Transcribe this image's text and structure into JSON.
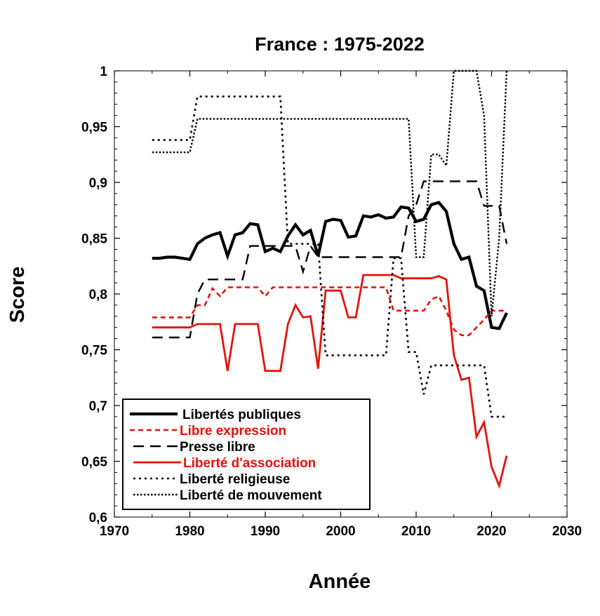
{
  "chart_data": {
    "type": "line",
    "title": "France : 1975-2022",
    "xlabel": "Année",
    "ylabel": "Score",
    "xlim": [
      1970,
      2030
    ],
    "ylim": [
      0.6,
      1.0
    ],
    "x_ticks": [
      1970,
      1980,
      1990,
      2000,
      2010,
      2020,
      2030
    ],
    "x_tick_labels": [
      "1970",
      "1980",
      "1990",
      "2000",
      "2010",
      "2020",
      "2030"
    ],
    "y_ticks": [
      0.6,
      0.65,
      0.7,
      0.75,
      0.8,
      0.85,
      0.9,
      0.95,
      1.0
    ],
    "y_tick_labels": [
      "0,6",
      "0,65",
      "0,7",
      "0,75",
      "0,8",
      "0,85",
      "0,9",
      "0,95",
      "1"
    ],
    "grid": false,
    "legend_position": "bottom-left",
    "series": [
      {
        "name": "Libertés publiques",
        "color": "#000000",
        "style": "solid-thick",
        "points": [
          [
            1975,
            0.832
          ],
          [
            1976,
            0.832
          ],
          [
            1977,
            0.833
          ],
          [
            1978,
            0.833
          ],
          [
            1979,
            0.832
          ],
          [
            1980,
            0.831
          ],
          [
            1981,
            0.845
          ],
          [
            1982,
            0.85
          ],
          [
            1983,
            0.853
          ],
          [
            1984,
            0.855
          ],
          [
            1985,
            0.834
          ],
          [
            1986,
            0.853
          ],
          [
            1987,
            0.855
          ],
          [
            1988,
            0.863
          ],
          [
            1989,
            0.862
          ],
          [
            1990,
            0.838
          ],
          [
            1991,
            0.841
          ],
          [
            1992,
            0.838
          ],
          [
            1993,
            0.852
          ],
          [
            1994,
            0.862
          ],
          [
            1995,
            0.853
          ],
          [
            1996,
            0.857
          ],
          [
            1997,
            0.834
          ],
          [
            1998,
            0.865
          ],
          [
            1999,
            0.867
          ],
          [
            2000,
            0.866
          ],
          [
            2001,
            0.851
          ],
          [
            2002,
            0.852
          ],
          [
            2003,
            0.87
          ],
          [
            2004,
            0.869
          ],
          [
            2005,
            0.871
          ],
          [
            2006,
            0.868
          ],
          [
            2007,
            0.869
          ],
          [
            2008,
            0.878
          ],
          [
            2009,
            0.877
          ],
          [
            2010,
            0.865
          ],
          [
            2011,
            0.867
          ],
          [
            2012,
            0.88
          ],
          [
            2013,
            0.882
          ],
          [
            2014,
            0.874
          ],
          [
            2015,
            0.845
          ],
          [
            2016,
            0.831
          ],
          [
            2017,
            0.833
          ],
          [
            2018,
            0.807
          ],
          [
            2019,
            0.803
          ],
          [
            2020,
            0.77
          ],
          [
            2021,
            0.769
          ],
          [
            2022,
            0.783
          ]
        ]
      },
      {
        "name": "Libre expression",
        "color": "#e3120b",
        "style": "dashed",
        "points": [
          [
            1975,
            0.779
          ],
          [
            1976,
            0.779
          ],
          [
            1977,
            0.779
          ],
          [
            1978,
            0.779
          ],
          [
            1979,
            0.779
          ],
          [
            1980,
            0.779
          ],
          [
            1981,
            0.79
          ],
          [
            1982,
            0.79
          ],
          [
            1983,
            0.805
          ],
          [
            1984,
            0.798
          ],
          [
            1985,
            0.806
          ],
          [
            1986,
            0.806
          ],
          [
            1987,
            0.806
          ],
          [
            1988,
            0.806
          ],
          [
            1989,
            0.806
          ],
          [
            1990,
            0.798
          ],
          [
            1991,
            0.806
          ],
          [
            1992,
            0.806
          ],
          [
            1993,
            0.806
          ],
          [
            1994,
            0.806
          ],
          [
            1995,
            0.806
          ],
          [
            1996,
            0.806
          ],
          [
            1997,
            0.806
          ],
          [
            1998,
            0.806
          ],
          [
            1999,
            0.806
          ],
          [
            2000,
            0.806
          ],
          [
            2001,
            0.806
          ],
          [
            2002,
            0.806
          ],
          [
            2003,
            0.806
          ],
          [
            2004,
            0.806
          ],
          [
            2005,
            0.806
          ],
          [
            2006,
            0.806
          ],
          [
            2007,
            0.785
          ],
          [
            2008,
            0.785
          ],
          [
            2009,
            0.785
          ],
          [
            2010,
            0.785
          ],
          [
            2011,
            0.785
          ],
          [
            2012,
            0.795
          ],
          [
            2013,
            0.798
          ],
          [
            2014,
            0.785
          ],
          [
            2015,
            0.768
          ],
          [
            2016,
            0.763
          ],
          [
            2017,
            0.763
          ],
          [
            2018,
            0.77
          ],
          [
            2019,
            0.777
          ],
          [
            2020,
            0.785
          ],
          [
            2021,
            0.785
          ],
          [
            2022,
            0.785
          ]
        ]
      },
      {
        "name": "Presse libre",
        "color": "#000000",
        "style": "long-dash",
        "points": [
          [
            1975,
            0.761
          ],
          [
            1976,
            0.761
          ],
          [
            1977,
            0.761
          ],
          [
            1978,
            0.761
          ],
          [
            1979,
            0.761
          ],
          [
            1980,
            0.761
          ],
          [
            1981,
            0.8
          ],
          [
            1982,
            0.813
          ],
          [
            1983,
            0.813
          ],
          [
            1984,
            0.813
          ],
          [
            1985,
            0.813
          ],
          [
            1986,
            0.813
          ],
          [
            1987,
            0.813
          ],
          [
            1988,
            0.843
          ],
          [
            1989,
            0.843
          ],
          [
            1990,
            0.843
          ],
          [
            1991,
            0.843
          ],
          [
            1992,
            0.843
          ],
          [
            1993,
            0.843
          ],
          [
            1994,
            0.843
          ],
          [
            1995,
            0.82
          ],
          [
            1996,
            0.843
          ],
          [
            1997,
            0.833
          ],
          [
            1998,
            0.833
          ],
          [
            1999,
            0.833
          ],
          [
            2000,
            0.833
          ],
          [
            2001,
            0.833
          ],
          [
            2002,
            0.833
          ],
          [
            2003,
            0.833
          ],
          [
            2004,
            0.833
          ],
          [
            2005,
            0.833
          ],
          [
            2006,
            0.833
          ],
          [
            2007,
            0.833
          ],
          [
            2008,
            0.833
          ],
          [
            2009,
            0.87
          ],
          [
            2010,
            0.88
          ],
          [
            2011,
            0.901
          ],
          [
            2012,
            0.901
          ],
          [
            2013,
            0.901
          ],
          [
            2014,
            0.901
          ],
          [
            2015,
            0.901
          ],
          [
            2016,
            0.901
          ],
          [
            2017,
            0.901
          ],
          [
            2018,
            0.901
          ],
          [
            2019,
            0.879
          ],
          [
            2020,
            0.879
          ],
          [
            2021,
            0.879
          ],
          [
            2022,
            0.845
          ]
        ]
      },
      {
        "name": "Liberté d'association",
        "color": "#e3120b",
        "style": "solid",
        "points": [
          [
            1975,
            0.77
          ],
          [
            1976,
            0.77
          ],
          [
            1977,
            0.77
          ],
          [
            1978,
            0.77
          ],
          [
            1979,
            0.77
          ],
          [
            1980,
            0.77
          ],
          [
            1981,
            0.773
          ],
          [
            1982,
            0.773
          ],
          [
            1983,
            0.773
          ],
          [
            1984,
            0.773
          ],
          [
            1985,
            0.731
          ],
          [
            1986,
            0.773
          ],
          [
            1987,
            0.773
          ],
          [
            1988,
            0.773
          ],
          [
            1989,
            0.773
          ],
          [
            1990,
            0.731
          ],
          [
            1991,
            0.731
          ],
          [
            1992,
            0.731
          ],
          [
            1993,
            0.773
          ],
          [
            1994,
            0.79
          ],
          [
            1995,
            0.779
          ],
          [
            1996,
            0.78
          ],
          [
            1997,
            0.733
          ],
          [
            1998,
            0.803
          ],
          [
            1999,
            0.803
          ],
          [
            2000,
            0.803
          ],
          [
            2001,
            0.779
          ],
          [
            2002,
            0.779
          ],
          [
            2003,
            0.817
          ],
          [
            2004,
            0.817
          ],
          [
            2005,
            0.817
          ],
          [
            2006,
            0.817
          ],
          [
            2007,
            0.817
          ],
          [
            2008,
            0.814
          ],
          [
            2009,
            0.814
          ],
          [
            2010,
            0.814
          ],
          [
            2011,
            0.814
          ],
          [
            2012,
            0.814
          ],
          [
            2013,
            0.816
          ],
          [
            2014,
            0.813
          ],
          [
            2015,
            0.745
          ],
          [
            2016,
            0.723
          ],
          [
            2017,
            0.725
          ],
          [
            2018,
            0.672
          ],
          [
            2019,
            0.685
          ],
          [
            2020,
            0.645
          ],
          [
            2021,
            0.628
          ],
          [
            2022,
            0.655
          ]
        ]
      },
      {
        "name": "Liberté religieuse",
        "color": "#000000",
        "style": "dotted",
        "points": [
          [
            1975,
            0.938
          ],
          [
            1976,
            0.938
          ],
          [
            1977,
            0.938
          ],
          [
            1978,
            0.938
          ],
          [
            1979,
            0.938
          ],
          [
            1980,
            0.938
          ],
          [
            1981,
            0.977
          ],
          [
            1982,
            0.977
          ],
          [
            1983,
            0.977
          ],
          [
            1984,
            0.977
          ],
          [
            1985,
            0.977
          ],
          [
            1986,
            0.977
          ],
          [
            1987,
            0.977
          ],
          [
            1988,
            0.977
          ],
          [
            1989,
            0.977
          ],
          [
            1990,
            0.977
          ],
          [
            1991,
            0.977
          ],
          [
            1992,
            0.977
          ],
          [
            1993,
            0.845
          ],
          [
            1994,
            0.845
          ],
          [
            1995,
            0.845
          ],
          [
            1996,
            0.845
          ],
          [
            1997,
            0.845
          ],
          [
            1998,
            0.745
          ],
          [
            1999,
            0.745
          ],
          [
            2000,
            0.745
          ],
          [
            2001,
            0.745
          ],
          [
            2002,
            0.745
          ],
          [
            2003,
            0.745
          ],
          [
            2004,
            0.745
          ],
          [
            2005,
            0.745
          ],
          [
            2006,
            0.745
          ],
          [
            2007,
            0.832
          ],
          [
            2008,
            0.832
          ],
          [
            2009,
            0.748
          ],
          [
            2010,
            0.748
          ],
          [
            2011,
            0.71
          ],
          [
            2012,
            0.736
          ],
          [
            2013,
            0.736
          ],
          [
            2014,
            0.736
          ],
          [
            2015,
            0.736
          ],
          [
            2016,
            0.736
          ],
          [
            2017,
            0.736
          ],
          [
            2018,
            0.736
          ],
          [
            2019,
            0.736
          ],
          [
            2020,
            0.69
          ],
          [
            2021,
            0.69
          ],
          [
            2022,
            0.69
          ]
        ]
      },
      {
        "name": "Liberté de mouvement",
        "color": "#000000",
        "style": "fine-dotted",
        "points": [
          [
            1975,
            0.927
          ],
          [
            1976,
            0.927
          ],
          [
            1977,
            0.927
          ],
          [
            1978,
            0.927
          ],
          [
            1979,
            0.927
          ],
          [
            1980,
            0.927
          ],
          [
            1981,
            0.957
          ],
          [
            1982,
            0.957
          ],
          [
            1983,
            0.957
          ],
          [
            1984,
            0.957
          ],
          [
            1985,
            0.957
          ],
          [
            1986,
            0.957
          ],
          [
            1987,
            0.957
          ],
          [
            1988,
            0.957
          ],
          [
            1989,
            0.957
          ],
          [
            1990,
            0.957
          ],
          [
            1991,
            0.957
          ],
          [
            1992,
            0.957
          ],
          [
            1993,
            0.957
          ],
          [
            1994,
            0.957
          ],
          [
            1995,
            0.957
          ],
          [
            1996,
            0.957
          ],
          [
            1997,
            0.957
          ],
          [
            1998,
            0.957
          ],
          [
            1999,
            0.957
          ],
          [
            2000,
            0.957
          ],
          [
            2001,
            0.957
          ],
          [
            2002,
            0.957
          ],
          [
            2003,
            0.957
          ],
          [
            2004,
            0.957
          ],
          [
            2005,
            0.957
          ],
          [
            2006,
            0.957
          ],
          [
            2007,
            0.957
          ],
          [
            2008,
            0.957
          ],
          [
            2009,
            0.957
          ],
          [
            2010,
            0.833
          ],
          [
            2011,
            0.833
          ],
          [
            2012,
            0.925
          ],
          [
            2013,
            0.925
          ],
          [
            2014,
            0.915
          ],
          [
            2015,
            1.0
          ],
          [
            2016,
            1.0
          ],
          [
            2017,
            1.0
          ],
          [
            2018,
            1.0
          ],
          [
            2019,
            0.96
          ],
          [
            2020,
            0.78
          ],
          [
            2021,
            0.85
          ],
          [
            2022,
            1.0
          ]
        ]
      }
    ]
  }
}
